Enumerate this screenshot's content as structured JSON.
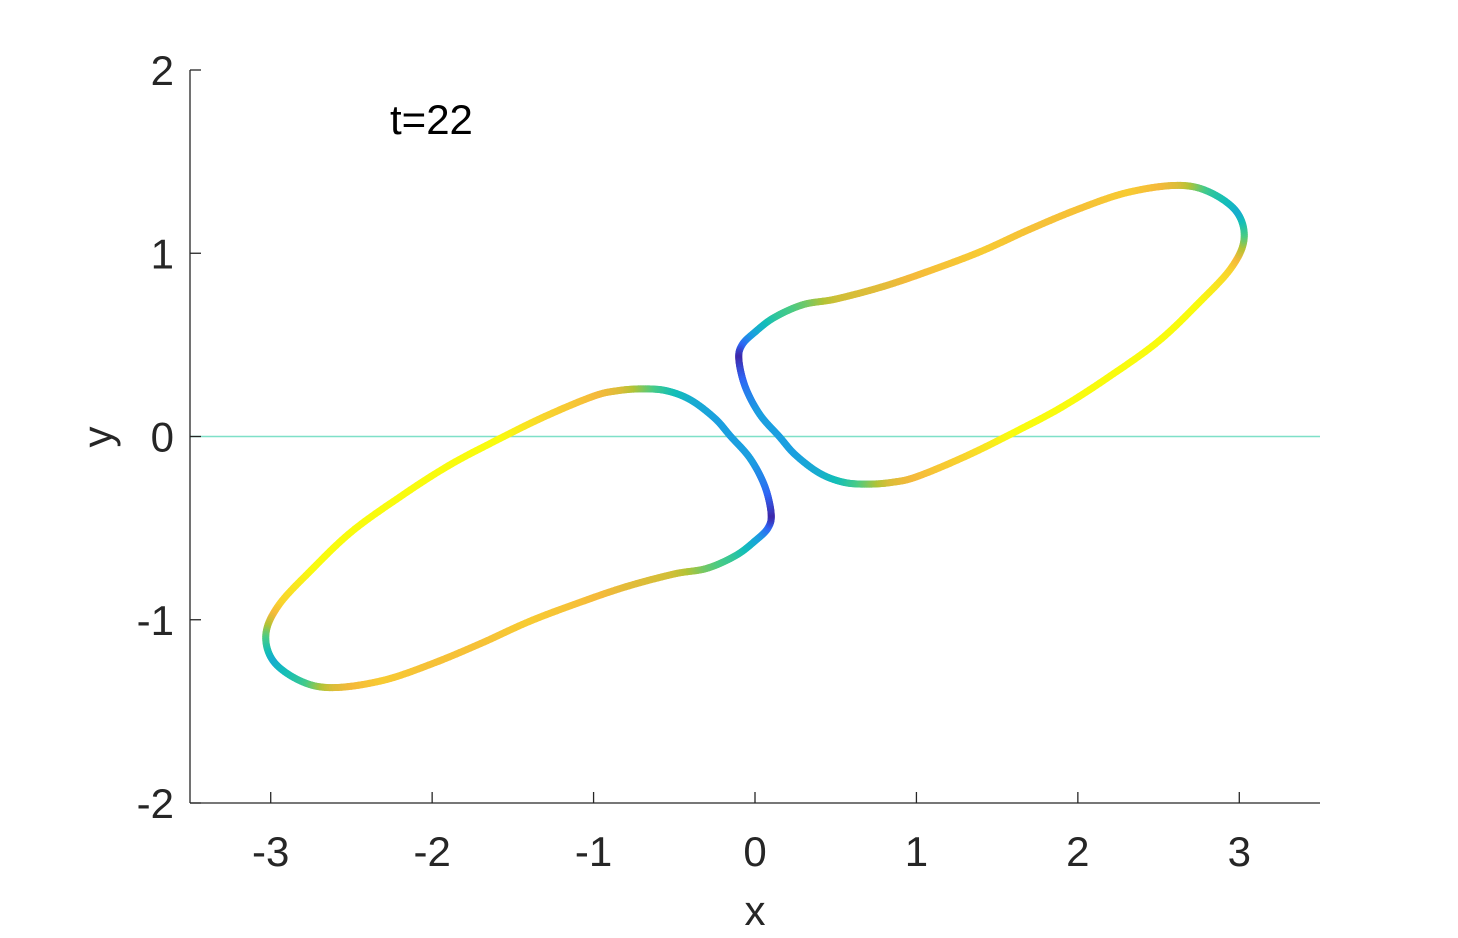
{
  "chart_data": {
    "type": "line",
    "title": "",
    "xlabel": "x",
    "ylabel": "y",
    "xlim": [
      -3.5,
      3.5
    ],
    "ylim": [
      -2,
      2
    ],
    "xticks": [
      -3,
      -2,
      -1,
      0,
      1,
      2,
      3
    ],
    "xtick_labels": [
      "-3",
      "-2",
      "-1",
      "0",
      "1",
      "2",
      "3"
    ],
    "yticks": [
      -2,
      -1,
      0,
      1,
      2
    ],
    "ytick_labels": [
      "-2",
      "-1",
      "0",
      "1",
      "2"
    ],
    "grid": false,
    "annotation": "t=22",
    "reference_line": {
      "y": 0,
      "color": "#7fe0c8"
    },
    "colormap": [
      "#3e26a8",
      "#2f66f5",
      "#1b9fe0",
      "#13beb8",
      "#48cb86",
      "#b3c335",
      "#f5b93b",
      "#f9d92b",
      "#f9fb0e"
    ],
    "series": [
      {
        "closed": true,
        "x": [
          -0.15,
          -0.25,
          -0.4,
          -0.55,
          -0.7,
          -0.85,
          -1.0,
          -1.3,
          -1.6,
          -1.9,
          -2.2,
          -2.5,
          -2.75,
          -2.95,
          -3.03,
          -2.98,
          -2.8,
          -2.6,
          -2.3,
          -2.0,
          -1.7,
          -1.4,
          -1.1,
          -0.8,
          -0.5,
          -0.3,
          -0.12,
          0.0,
          0.08,
          0.1,
          0.06,
          -0.03
        ],
        "y": [
          0.0,
          0.1,
          0.2,
          0.25,
          0.26,
          0.25,
          0.22,
          0.11,
          -0.02,
          -0.16,
          -0.33,
          -0.52,
          -0.73,
          -0.92,
          -1.08,
          -1.23,
          -1.34,
          -1.37,
          -1.33,
          -1.24,
          -1.13,
          -1.01,
          -0.91,
          -0.82,
          -0.75,
          -0.72,
          -0.65,
          -0.57,
          -0.5,
          -0.42,
          -0.27,
          -0.12
        ],
        "speed": [
          0.25,
          0.25,
          0.3,
          0.4,
          0.55,
          0.7,
          0.75,
          0.85,
          1.0,
          1.0,
          1.0,
          1.0,
          1.0,
          0.85,
          0.55,
          0.3,
          0.45,
          0.7,
          0.82,
          0.78,
          0.78,
          0.82,
          0.78,
          0.72,
          0.68,
          0.55,
          0.45,
          0.3,
          0.15,
          0.0,
          0.15,
          0.25
        ]
      },
      {
        "closed": true,
        "x": [
          0.15,
          0.25,
          0.4,
          0.55,
          0.7,
          0.85,
          1.0,
          1.3,
          1.6,
          1.9,
          2.2,
          2.5,
          2.75,
          2.95,
          3.03,
          2.98,
          2.8,
          2.6,
          2.3,
          2.0,
          1.7,
          1.4,
          1.1,
          0.8,
          0.5,
          0.3,
          0.12,
          0.0,
          -0.08,
          -0.1,
          -0.06,
          0.03
        ],
        "y": [
          0.0,
          -0.1,
          -0.2,
          -0.25,
          -0.26,
          -0.25,
          -0.22,
          -0.11,
          0.02,
          0.16,
          0.33,
          0.52,
          0.73,
          0.92,
          1.08,
          1.23,
          1.34,
          1.37,
          1.33,
          1.24,
          1.13,
          1.01,
          0.91,
          0.82,
          0.75,
          0.72,
          0.65,
          0.57,
          0.5,
          0.42,
          0.27,
          0.12
        ],
        "speed": [
          0.25,
          0.25,
          0.3,
          0.4,
          0.55,
          0.7,
          0.75,
          0.85,
          1.0,
          1.0,
          1.0,
          1.0,
          1.0,
          0.85,
          0.55,
          0.3,
          0.45,
          0.7,
          0.82,
          0.78,
          0.78,
          0.82,
          0.78,
          0.72,
          0.68,
          0.55,
          0.45,
          0.3,
          0.15,
          0.0,
          0.15,
          0.25
        ]
      }
    ]
  }
}
